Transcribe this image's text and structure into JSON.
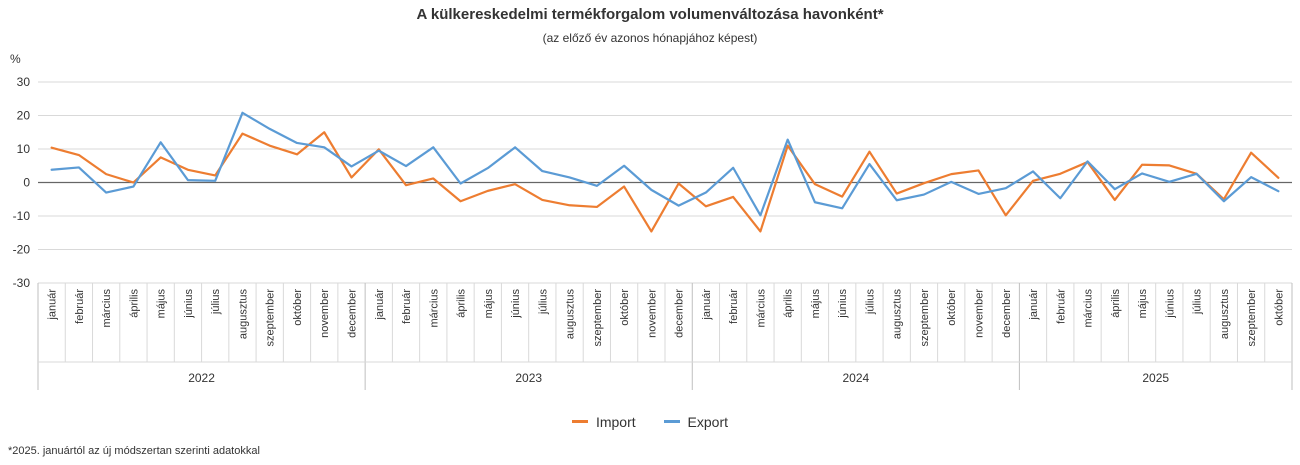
{
  "chart_data": {
    "type": "line",
    "title": "A külkereskedelmi termékforgalom volumenváltozása havonként*",
    "subtitle": "(az előző év azonos hónapjához képest)",
    "ylabel": "%",
    "ylim": [
      -30,
      30
    ],
    "yticks": [
      30,
      20,
      10,
      0,
      -10,
      -20,
      -30
    ],
    "months": [
      "január",
      "február",
      "március",
      "április",
      "május",
      "június",
      "július",
      "augusztus",
      "szeptember",
      "október",
      "november",
      "december"
    ],
    "years": [
      "2022",
      "2023",
      "2024",
      "2025"
    ],
    "months_per_year": [
      12,
      12,
      12,
      10
    ],
    "series": [
      {
        "name": "Import",
        "color": "#ed7d31",
        "values": [
          10.4,
          8.2,
          2.5,
          0.0,
          7.5,
          3.8,
          2.1,
          14.6,
          11.0,
          8.4,
          15.0,
          1.5,
          9.9,
          -0.8,
          1.2,
          -5.6,
          -2.5,
          -0.5,
          -5.2,
          -6.8,
          -7.3,
          -1.2,
          -14.6,
          -0.3,
          -7.1,
          -4.3,
          -14.6,
          11.0,
          -0.5,
          -4.2,
          9.2,
          -3.3,
          -0.2,
          2.5,
          3.6,
          -9.8,
          0.5,
          2.6,
          6.1,
          -5.2,
          5.3,
          5.1,
          2.6,
          -5.0,
          8.9,
          1.4
        ]
      },
      {
        "name": "Export",
        "color": "#5b9bd5",
        "values": [
          3.8,
          4.5,
          -3.0,
          -1.2,
          12.0,
          0.7,
          0.5,
          20.8,
          16.0,
          11.8,
          10.5,
          4.8,
          9.5,
          4.9,
          10.5,
          -0.3,
          4.3,
          10.5,
          3.4,
          1.5,
          -1.0,
          5.0,
          -2.2,
          -6.9,
          -3.0,
          4.4,
          -9.8,
          12.8,
          -5.9,
          -7.7,
          5.5,
          -5.3,
          -3.6,
          0.2,
          -3.4,
          -1.7,
          3.3,
          -4.7,
          6.3,
          -2.0,
          2.7,
          0.2,
          2.6,
          -5.6,
          1.6,
          -2.6
        ]
      }
    ],
    "legend_position": "bottom-center"
  },
  "footnote": "*2025. januártól az új módszertan szerinti adatokkal"
}
